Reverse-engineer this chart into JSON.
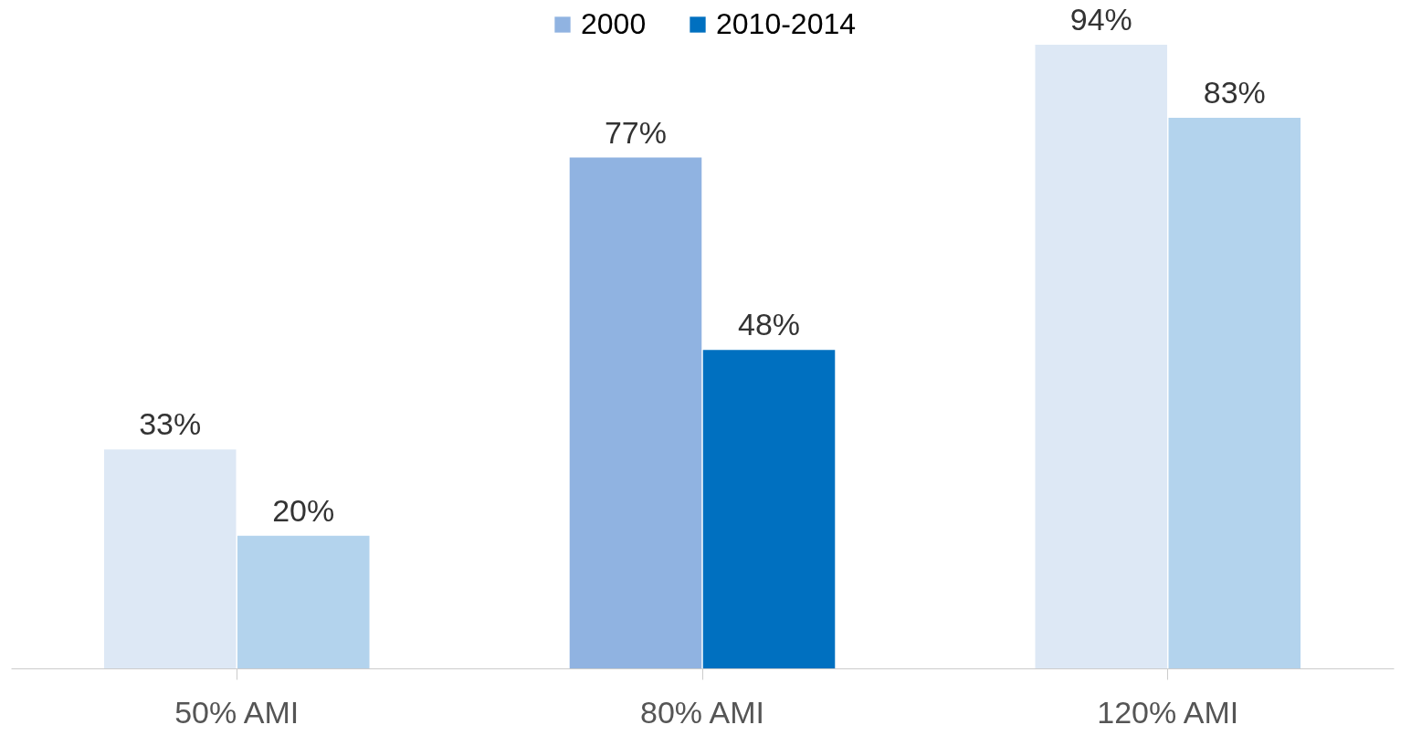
{
  "chart_data": {
    "type": "bar",
    "categories": [
      "50% AMI",
      "80% AMI",
      "120% AMI"
    ],
    "series": [
      {
        "name": "2000",
        "color": "#90b3e1",
        "colors": [
          "#dde8f5",
          "#90b3e1",
          "#dde8f5"
        ],
        "values": [
          33,
          77,
          94
        ],
        "value_labels": [
          "33%",
          "77%",
          "94%"
        ]
      },
      {
        "name": "2010-2014",
        "color": "#0070c0",
        "colors": [
          "#b3d3ed",
          "#0070c0",
          "#b3d3ed"
        ],
        "values": [
          20,
          48,
          83
        ],
        "value_labels": [
          "20%",
          "48%",
          "83%"
        ]
      }
    ],
    "legend": "top",
    "grid": false
  }
}
